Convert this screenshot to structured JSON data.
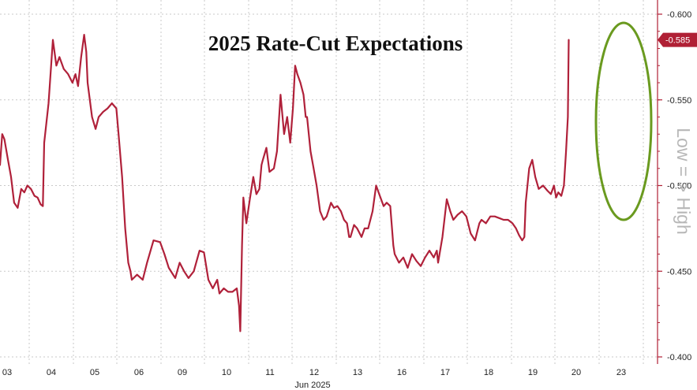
{
  "colors": {
    "series": "#b0213a",
    "axis": "#b02035",
    "highlight": "#6a9a1f",
    "side_annotation": "#b7b7b7"
  },
  "chart_data": {
    "type": "line",
    "title": "2025 Rate-Cut Expectations",
    "xlabel": "Jun 2025",
    "ylabel": "",
    "side_annotation": "Low = > High",
    "y_axis_side": "right",
    "y_axis_inverted": true,
    "ylim": [
      -0.4,
      -0.6
    ],
    "y_ticks": [
      -0.6,
      -0.55,
      -0.5,
      -0.45,
      -0.4
    ],
    "y_tick_labels": [
      "-0.600",
      "-0.550",
      "-0.500",
      "-0.450",
      "-0.400"
    ],
    "x_tick_labels": [
      "03",
      "04",
      "05",
      "06",
      "09",
      "10",
      "11",
      "12",
      "13",
      "16",
      "17",
      "18",
      "19",
      "20",
      "23"
    ],
    "month_label": "Jun 2025",
    "grid": true,
    "last_value": -0.585,
    "last_value_label": "-0.585",
    "highlight": "ellipse around latest spike on 23",
    "series": [
      {
        "values": [
          [
            0.0,
            -0.512
          ],
          [
            0.05,
            -0.53
          ],
          [
            0.1,
            -0.527
          ],
          [
            0.18,
            -0.515
          ],
          [
            0.25,
            -0.505
          ],
          [
            0.32,
            -0.49
          ],
          [
            0.4,
            -0.487
          ],
          [
            0.48,
            -0.498
          ],
          [
            0.55,
            -0.496
          ],
          [
            0.62,
            -0.5
          ],
          [
            0.7,
            -0.498
          ],
          [
            0.78,
            -0.494
          ],
          [
            0.85,
            -0.493
          ],
          [
            0.92,
            -0.489
          ],
          [
            0.97,
            -0.488
          ],
          [
            1.0,
            -0.525
          ],
          [
            1.1,
            -0.548
          ],
          [
            1.2,
            -0.585
          ],
          [
            1.28,
            -0.57
          ],
          [
            1.35,
            -0.575
          ],
          [
            1.45,
            -0.568
          ],
          [
            1.55,
            -0.565
          ],
          [
            1.65,
            -0.56
          ],
          [
            1.72,
            -0.565
          ],
          [
            1.78,
            -0.558
          ],
          [
            1.85,
            -0.575
          ],
          [
            1.92,
            -0.588
          ],
          [
            1.97,
            -0.578
          ],
          [
            2.0,
            -0.56
          ],
          [
            2.1,
            -0.54
          ],
          [
            2.18,
            -0.533
          ],
          [
            2.25,
            -0.54
          ],
          [
            2.35,
            -0.543
          ],
          [
            2.45,
            -0.545
          ],
          [
            2.55,
            -0.548
          ],
          [
            2.65,
            -0.545
          ],
          [
            2.7,
            -0.53
          ],
          [
            2.78,
            -0.505
          ],
          [
            2.85,
            -0.475
          ],
          [
            2.92,
            -0.455
          ],
          [
            2.97,
            -0.45
          ],
          [
            3.0,
            -0.445
          ],
          [
            3.12,
            -0.448
          ],
          [
            3.25,
            -0.445
          ],
          [
            3.35,
            -0.455
          ],
          [
            3.5,
            -0.468
          ],
          [
            3.65,
            -0.467
          ],
          [
            3.75,
            -0.46
          ],
          [
            3.85,
            -0.452
          ],
          [
            3.95,
            -0.448
          ],
          [
            4.0,
            -0.446
          ],
          [
            4.1,
            -0.455
          ],
          [
            4.2,
            -0.45
          ],
          [
            4.3,
            -0.446
          ],
          [
            4.42,
            -0.45
          ],
          [
            4.55,
            -0.462
          ],
          [
            4.65,
            -0.461
          ],
          [
            4.75,
            -0.445
          ],
          [
            4.85,
            -0.44
          ],
          [
            4.95,
            -0.445
          ],
          [
            5.0,
            -0.437
          ],
          [
            5.1,
            -0.44
          ],
          [
            5.2,
            -0.438
          ],
          [
            5.3,
            -0.438
          ],
          [
            5.4,
            -0.44
          ],
          [
            5.45,
            -0.43
          ],
          [
            5.48,
            -0.415
          ],
          [
            5.52,
            -0.465
          ],
          [
            5.55,
            -0.493
          ],
          [
            5.62,
            -0.478
          ],
          [
            5.7,
            -0.492
          ],
          [
            5.78,
            -0.505
          ],
          [
            5.85,
            -0.495
          ],
          [
            5.92,
            -0.498
          ],
          [
            5.97,
            -0.512
          ],
          [
            6.0,
            -0.515
          ],
          [
            6.08,
            -0.522
          ],
          [
            6.15,
            -0.508
          ],
          [
            6.25,
            -0.51
          ],
          [
            6.32,
            -0.52
          ],
          [
            6.4,
            -0.553
          ],
          [
            6.48,
            -0.53
          ],
          [
            6.55,
            -0.54
          ],
          [
            6.62,
            -0.525
          ],
          [
            6.68,
            -0.545
          ],
          [
            6.73,
            -0.57
          ],
          [
            6.78,
            -0.565
          ],
          [
            6.85,
            -0.56
          ],
          [
            6.92,
            -0.553
          ],
          [
            6.97,
            -0.54
          ],
          [
            7.0,
            -0.54
          ],
          [
            7.08,
            -0.52
          ],
          [
            7.15,
            -0.51
          ],
          [
            7.22,
            -0.5
          ],
          [
            7.3,
            -0.485
          ],
          [
            7.38,
            -0.48
          ],
          [
            7.45,
            -0.482
          ],
          [
            7.55,
            -0.49
          ],
          [
            7.62,
            -0.487
          ],
          [
            7.7,
            -0.488
          ],
          [
            7.78,
            -0.485
          ],
          [
            7.85,
            -0.48
          ],
          [
            7.92,
            -0.478
          ],
          [
            7.97,
            -0.47
          ],
          [
            8.0,
            -0.47
          ],
          [
            8.08,
            -0.477
          ],
          [
            8.15,
            -0.475
          ],
          [
            8.25,
            -0.47
          ],
          [
            8.32,
            -0.475
          ],
          [
            8.4,
            -0.475
          ],
          [
            8.5,
            -0.485
          ],
          [
            8.58,
            -0.5
          ],
          [
            8.65,
            -0.495
          ],
          [
            8.75,
            -0.488
          ],
          [
            8.82,
            -0.49
          ],
          [
            8.9,
            -0.488
          ],
          [
            8.97,
            -0.465
          ],
          [
            9.0,
            -0.46
          ],
          [
            9.1,
            -0.455
          ],
          [
            9.2,
            -0.458
          ],
          [
            9.3,
            -0.452
          ],
          [
            9.4,
            -0.46
          ],
          [
            9.5,
            -0.456
          ],
          [
            9.6,
            -0.453
          ],
          [
            9.7,
            -0.458
          ],
          [
            9.8,
            -0.462
          ],
          [
            9.9,
            -0.458
          ],
          [
            9.97,
            -0.462
          ],
          [
            10.0,
            -0.455
          ],
          [
            10.1,
            -0.47
          ],
          [
            10.2,
            -0.492
          ],
          [
            10.28,
            -0.485
          ],
          [
            10.35,
            -0.48
          ],
          [
            10.45,
            -0.483
          ],
          [
            10.55,
            -0.485
          ],
          [
            10.65,
            -0.482
          ],
          [
            10.75,
            -0.472
          ],
          [
            10.85,
            -0.468
          ],
          [
            10.95,
            -0.478
          ],
          [
            11.0,
            -0.48
          ],
          [
            11.1,
            -0.478
          ],
          [
            11.2,
            -0.482
          ],
          [
            11.3,
            -0.482
          ],
          [
            11.4,
            -0.481
          ],
          [
            11.5,
            -0.48
          ],
          [
            11.6,
            -0.48
          ],
          [
            11.7,
            -0.478
          ],
          [
            11.78,
            -0.475
          ],
          [
            11.85,
            -0.471
          ],
          [
            11.92,
            -0.468
          ],
          [
            11.97,
            -0.47
          ],
          [
            12.0,
            -0.49
          ],
          [
            12.08,
            -0.51
          ],
          [
            12.15,
            -0.515
          ],
          [
            12.22,
            -0.505
          ],
          [
            12.3,
            -0.498
          ],
          [
            12.4,
            -0.5
          ],
          [
            12.5,
            -0.497
          ],
          [
            12.58,
            -0.495
          ],
          [
            12.65,
            -0.5
          ],
          [
            12.7,
            -0.493
          ],
          [
            12.75,
            -0.496
          ],
          [
            12.82,
            -0.494
          ],
          [
            12.88,
            -0.5
          ],
          [
            12.93,
            -0.52
          ],
          [
            12.97,
            -0.54
          ],
          [
            12.99,
            -0.585
          ]
        ]
      }
    ]
  }
}
